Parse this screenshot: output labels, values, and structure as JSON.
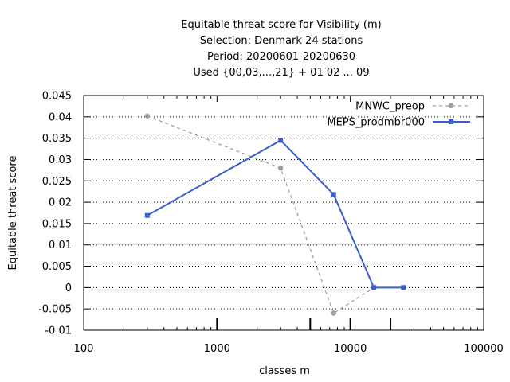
{
  "chart_data": {
    "type": "line",
    "title_lines": [
      "Equitable threat score  for Visibility (m)",
      "Selection: Denmark     24 stations",
      "Period: 20200601-20200630",
      "Used {00,03,...,21} + 01 02 ... 09"
    ],
    "xlabel": "classes m",
    "ylabel": "Equitable threat score",
    "x_scale": "log",
    "xlim": [
      100,
      100000
    ],
    "ylim": [
      -0.01,
      0.045
    ],
    "x_ticks": [
      100,
      1000,
      10000,
      100000
    ],
    "x_tick_labels": [
      "100",
      "1000",
      "10000",
      "100000"
    ],
    "y_ticks": [
      -0.01,
      -0.005,
      0,
      0.005,
      0.01,
      0.015,
      0.02,
      0.025,
      0.03,
      0.035,
      0.04,
      0.045
    ],
    "y_tick_labels": [
      "-0.01",
      "-0.005",
      "0",
      "0.005",
      "0.01",
      "0.015",
      "0.02",
      "0.025",
      "0.03",
      "0.035",
      "0.04",
      "0.045"
    ],
    "grid": "horizontal",
    "legend_position": "top-right",
    "class_markers": [
      1000,
      5000,
      10000,
      20000
    ],
    "series": [
      {
        "name": "MNWC_preop",
        "color": "#a0a0a0",
        "style": "dashed",
        "x": [
          300,
          3000,
          7500,
          15000,
          25000
        ],
        "y": [
          0.0402,
          0.028,
          -0.006,
          0.0,
          0.0
        ]
      },
      {
        "name": "MEPS_prodmbr000",
        "color": "#3a5fcd",
        "style": "solid",
        "x": [
          300,
          3000,
          7500,
          15000,
          25000
        ],
        "y": [
          0.0169,
          0.0345,
          0.0218,
          0.0,
          0.0
        ]
      }
    ]
  }
}
